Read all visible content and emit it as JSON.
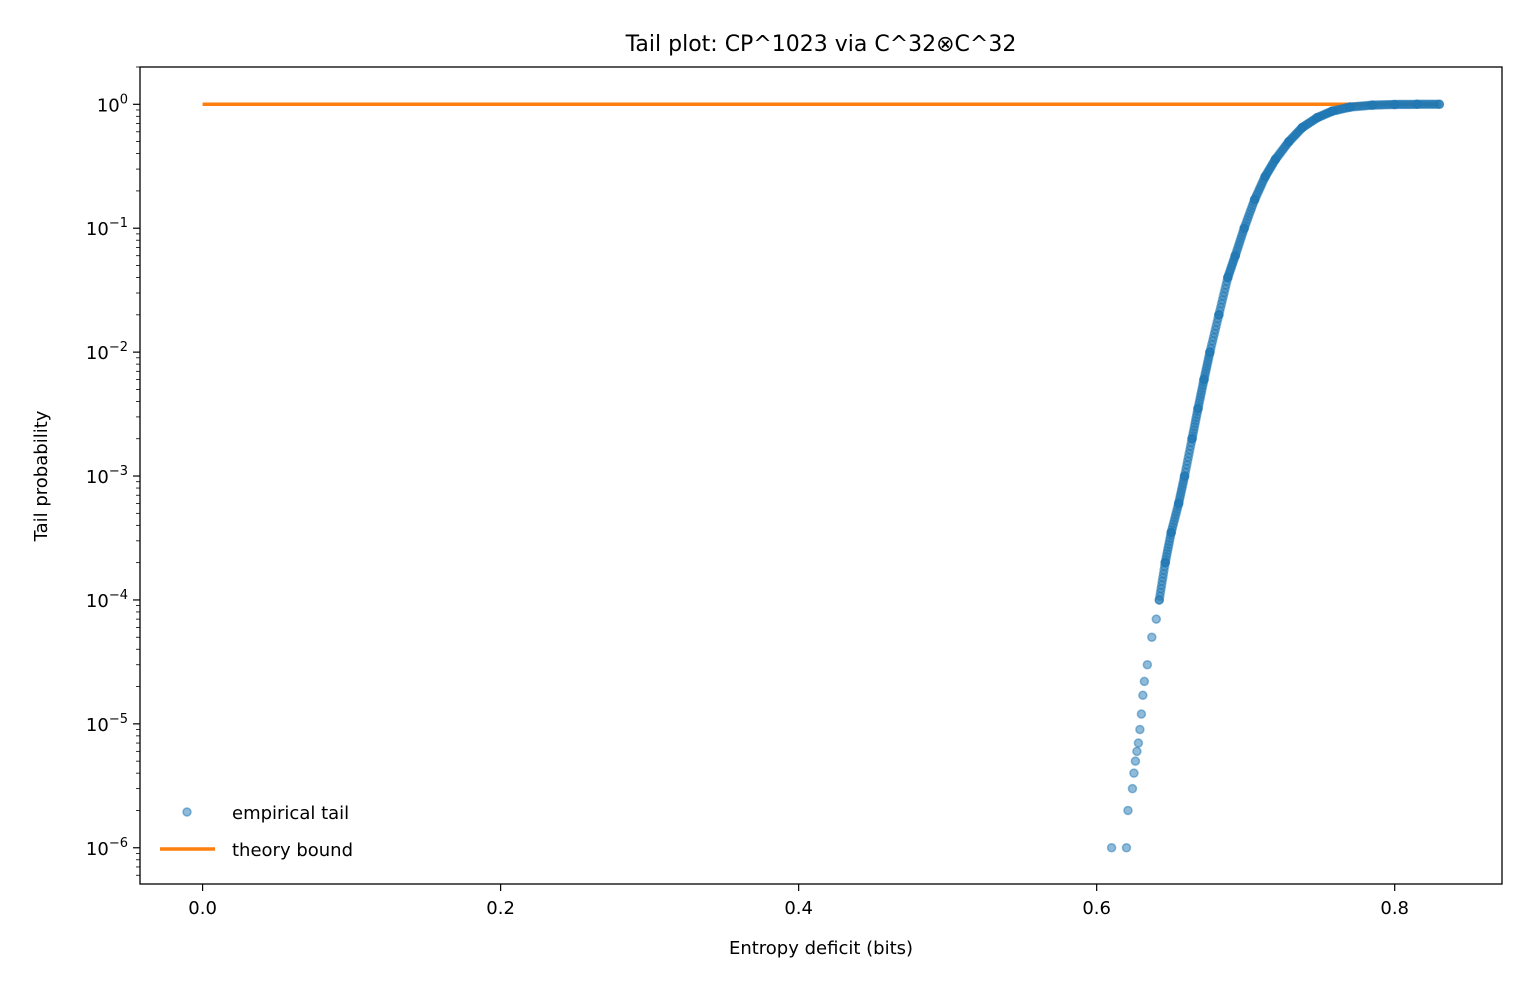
{
  "chart_data": {
    "type": "scatter",
    "title": "Tail plot: CP^1023 via C^32⊗C^32",
    "xlabel": "Entropy deficit (bits)",
    "ylabel": "Tail probability",
    "xlim": [
      -0.042,
      0.872
    ],
    "ylim": [
      5.1e-07,
      2.0
    ],
    "yscale": "log",
    "grid": false,
    "legend_position": "lower-left",
    "x_ticks": [
      {
        "value": 0.0,
        "label": "0.0"
      },
      {
        "value": 0.2,
        "label": "0.2"
      },
      {
        "value": 0.4,
        "label": "0.4"
      },
      {
        "value": 0.6,
        "label": "0.6"
      },
      {
        "value": 0.8,
        "label": "0.8"
      }
    ],
    "y_ticks": [
      {
        "value": 1,
        "base": "10",
        "exp": "0"
      },
      {
        "value": 0.1,
        "base": "10",
        "exp": "−1"
      },
      {
        "value": 0.01,
        "base": "10",
        "exp": "−2"
      },
      {
        "value": 0.001,
        "base": "10",
        "exp": "−3"
      },
      {
        "value": 0.0001,
        "base": "10",
        "exp": "−4"
      },
      {
        "value": 1e-05,
        "base": "10",
        "exp": "−5"
      },
      {
        "value": 1e-06,
        "base": "10",
        "exp": "−6"
      }
    ],
    "series": [
      {
        "name": "empirical tail",
        "kind": "scatter",
        "color": "#1f77b4",
        "points": [
          [
            0.61,
            1e-06
          ],
          [
            0.62,
            1e-06
          ],
          [
            0.621,
            2e-06
          ],
          [
            0.624,
            3e-06
          ],
          [
            0.625,
            4e-06
          ],
          [
            0.626,
            5e-06
          ],
          [
            0.627,
            6e-06
          ],
          [
            0.628,
            7e-06
          ],
          [
            0.629,
            9e-06
          ],
          [
            0.63,
            1.2e-05
          ],
          [
            0.631,
            1.7e-05
          ],
          [
            0.632,
            2.2e-05
          ],
          [
            0.634,
            3e-05
          ],
          [
            0.637,
            5e-05
          ],
          [
            0.64,
            7e-05
          ],
          [
            0.642,
            0.0001
          ],
          [
            0.646,
            0.0002
          ],
          [
            0.65,
            0.00035
          ],
          [
            0.655,
            0.0006
          ],
          [
            0.659,
            0.001
          ],
          [
            0.664,
            0.002
          ],
          [
            0.668,
            0.0035
          ],
          [
            0.672,
            0.006
          ],
          [
            0.676,
            0.01
          ],
          [
            0.682,
            0.02
          ],
          [
            0.688,
            0.04
          ],
          [
            0.693,
            0.06
          ],
          [
            0.699,
            0.1
          ],
          [
            0.706,
            0.17
          ],
          [
            0.713,
            0.26
          ],
          [
            0.72,
            0.36
          ],
          [
            0.729,
            0.5
          ],
          [
            0.738,
            0.65
          ],
          [
            0.748,
            0.78
          ],
          [
            0.758,
            0.88
          ],
          [
            0.77,
            0.95
          ],
          [
            0.785,
            0.985
          ],
          [
            0.8,
            0.997
          ],
          [
            0.815,
            1.0
          ],
          [
            0.83,
            1.0
          ]
        ]
      },
      {
        "name": "theory bound",
        "kind": "line",
        "color": "#ff7f0e",
        "points": [
          [
            0.0,
            1.0
          ],
          [
            0.83,
            1.0
          ]
        ]
      }
    ]
  }
}
